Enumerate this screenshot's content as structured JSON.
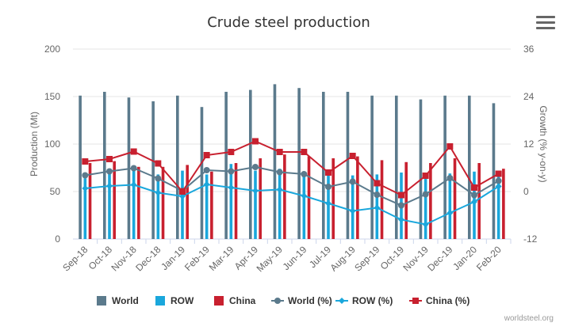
{
  "chart_data": {
    "type": "bar",
    "title": "Crude steel production",
    "credit": "worldsteel.org",
    "categories": [
      "Sep-18",
      "Oct-18",
      "Nov-18",
      "Dec-18",
      "Jan-19",
      "Feb-19",
      "Mar-19",
      "Apr-19",
      "May-19",
      "Jun-19",
      "Jul-19",
      "Aug-19",
      "Sep-19",
      "Oct-19",
      "Nov-19",
      "Dec-19",
      "Jan-20",
      "Feb-20"
    ],
    "ylabel_left": "Production (Mt)",
    "ylabel_right": "Growth (% y-on-y)",
    "ylim_left": [
      0,
      200
    ],
    "ylim_right": [
      -12,
      36
    ],
    "yticks_left": [
      "0",
      "50",
      "100",
      "150",
      "200"
    ],
    "yticks_right": [
      "-12",
      "0",
      "12",
      "24",
      "36"
    ],
    "grid": true,
    "legend_position": "bottom",
    "series": [
      {
        "name": "World",
        "kind": "bar",
        "axis": "left",
        "color": "#5b7a8c",
        "values": [
          151,
          155,
          149,
          145,
          151,
          139,
          155,
          157,
          163,
          159,
          155,
          155,
          151,
          151,
          147,
          151,
          151,
          143
        ]
      },
      {
        "name": "ROW",
        "kind": "bar",
        "axis": "left",
        "color": "#1aa7dc",
        "values": [
          64,
          72,
          73,
          68,
          72,
          68,
          79,
          72,
          74,
          69,
          69,
          67,
          68,
          70,
          67,
          69,
          71,
          68
        ]
      },
      {
        "name": "China",
        "kind": "bar",
        "axis": "left",
        "color": "#c8202f",
        "values": [
          80,
          82,
          76,
          76,
          78,
          71,
          80,
          85,
          89,
          87,
          85,
          87,
          83,
          81,
          80,
          85,
          80,
          74
        ]
      },
      {
        "name": "World (%)",
        "kind": "line",
        "axis": "right",
        "color": "#5b7a8c",
        "marker": "circle",
        "values": [
          4.1,
          5.1,
          5.9,
          3.3,
          0.2,
          5.4,
          5.1,
          6.2,
          4.9,
          4.4,
          1.2,
          2.5,
          -0.8,
          -3.5,
          -0.7,
          3.4,
          -0.9,
          2.7
        ]
      },
      {
        "name": "ROW (%)",
        "kind": "line",
        "axis": "right",
        "color": "#1aa7dc",
        "marker": "diamond",
        "values": [
          0.8,
          1.4,
          1.7,
          -0.3,
          -1.2,
          1.8,
          1.0,
          0.2,
          0.5,
          -1.1,
          -3.0,
          -4.9,
          -4.1,
          -7.1,
          -8.3,
          -5.4,
          -2.6,
          1.3
        ]
      },
      {
        "name": "China (%)",
        "kind": "line",
        "axis": "right",
        "color": "#c8202f",
        "marker": "square",
        "values": [
          7.6,
          8.2,
          10.1,
          7.1,
          0.0,
          9.2,
          10.0,
          12.7,
          10.0,
          10.0,
          4.8,
          9.0,
          2.1,
          -0.9,
          4.0,
          11.4,
          1.0,
          4.5
        ]
      }
    ]
  }
}
